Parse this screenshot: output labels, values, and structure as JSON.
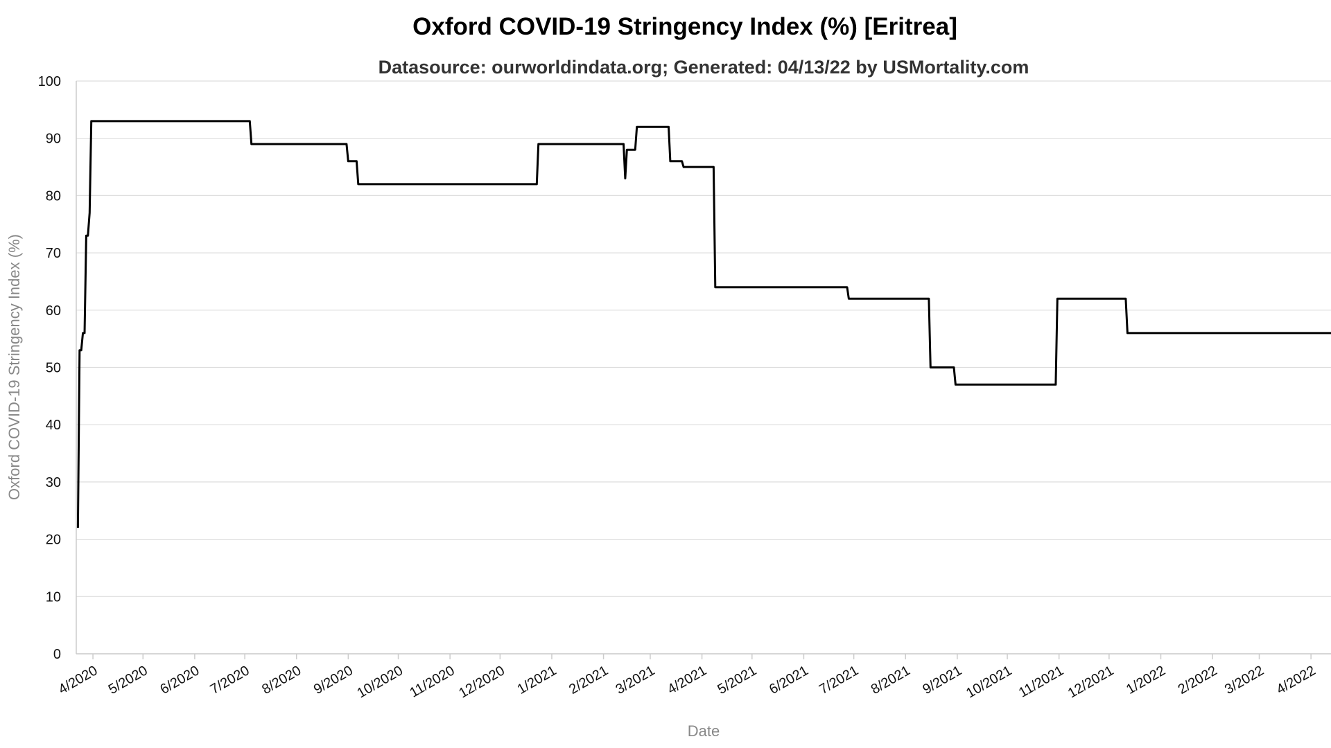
{
  "chart_data": {
    "type": "line",
    "title": "Oxford COVID-19 Stringency Index (%) [Eritrea]",
    "subtitle": "Datasource: ourworldindata.org; Generated: 04/13/22 by USMortality.com",
    "xlabel": "Date",
    "ylabel": "Oxford COVID-19 Stringency Index (%)",
    "ylim": [
      0,
      100
    ],
    "xlim": [
      "2020-03-22",
      "2022-04-13"
    ],
    "y_ticks": [
      0,
      10,
      20,
      30,
      40,
      50,
      60,
      70,
      80,
      90,
      100
    ],
    "x_ticks": [
      {
        "date": "2020-04-01",
        "label": "4/2020"
      },
      {
        "date": "2020-05-01",
        "label": "5/2020"
      },
      {
        "date": "2020-06-01",
        "label": "6/2020"
      },
      {
        "date": "2020-07-01",
        "label": "7/2020"
      },
      {
        "date": "2020-08-01",
        "label": "8/2020"
      },
      {
        "date": "2020-09-01",
        "label": "9/2020"
      },
      {
        "date": "2020-10-01",
        "label": "10/2020"
      },
      {
        "date": "2020-11-01",
        "label": "11/2020"
      },
      {
        "date": "2020-12-01",
        "label": "12/2020"
      },
      {
        "date": "2021-01-01",
        "label": "1/2021"
      },
      {
        "date": "2021-02-01",
        "label": "2/2021"
      },
      {
        "date": "2021-03-01",
        "label": "3/2021"
      },
      {
        "date": "2021-04-01",
        "label": "4/2021"
      },
      {
        "date": "2021-05-01",
        "label": "5/2021"
      },
      {
        "date": "2021-06-01",
        "label": "6/2021"
      },
      {
        "date": "2021-07-01",
        "label": "7/2021"
      },
      {
        "date": "2021-08-01",
        "label": "8/2021"
      },
      {
        "date": "2021-09-01",
        "label": "9/2021"
      },
      {
        "date": "2021-10-01",
        "label": "10/2021"
      },
      {
        "date": "2021-11-01",
        "label": "11/2021"
      },
      {
        "date": "2021-12-01",
        "label": "12/2021"
      },
      {
        "date": "2022-01-01",
        "label": "1/2022"
      },
      {
        "date": "2022-02-01",
        "label": "2/2022"
      },
      {
        "date": "2022-03-01",
        "label": "3/2022"
      },
      {
        "date": "2022-04-01",
        "label": "4/2022"
      }
    ],
    "grid": true,
    "series": [
      {
        "color": "#000000",
        "points": [
          [
            "2020-03-23",
            22
          ],
          [
            "2020-03-24",
            53
          ],
          [
            "2020-03-25",
            53
          ],
          [
            "2020-03-26",
            56
          ],
          [
            "2020-03-27",
            56
          ],
          [
            "2020-03-28",
            73
          ],
          [
            "2020-03-29",
            73
          ],
          [
            "2020-03-30",
            77
          ],
          [
            "2020-03-31",
            93
          ],
          [
            "2020-07-04",
            93
          ],
          [
            "2020-07-05",
            89
          ],
          [
            "2020-08-31",
            89
          ],
          [
            "2020-09-01",
            86
          ],
          [
            "2020-09-06",
            86
          ],
          [
            "2020-09-07",
            82
          ],
          [
            "2020-12-23",
            82
          ],
          [
            "2020-12-24",
            89
          ],
          [
            "2021-02-13",
            89
          ],
          [
            "2021-02-14",
            83
          ],
          [
            "2021-02-15",
            88
          ],
          [
            "2021-02-20",
            88
          ],
          [
            "2021-02-21",
            92
          ],
          [
            "2021-03-12",
            92
          ],
          [
            "2021-03-13",
            86
          ],
          [
            "2021-03-20",
            86
          ],
          [
            "2021-03-21",
            85
          ],
          [
            "2021-04-08",
            85
          ],
          [
            "2021-04-09",
            64
          ],
          [
            "2021-06-27",
            64
          ],
          [
            "2021-06-28",
            62
          ],
          [
            "2021-08-15",
            62
          ],
          [
            "2021-08-16",
            50
          ],
          [
            "2021-08-30",
            50
          ],
          [
            "2021-08-31",
            47
          ],
          [
            "2021-10-30",
            47
          ],
          [
            "2021-10-31",
            62
          ],
          [
            "2021-12-11",
            62
          ],
          [
            "2021-12-12",
            56
          ],
          [
            "2022-04-13",
            56
          ]
        ]
      }
    ]
  }
}
